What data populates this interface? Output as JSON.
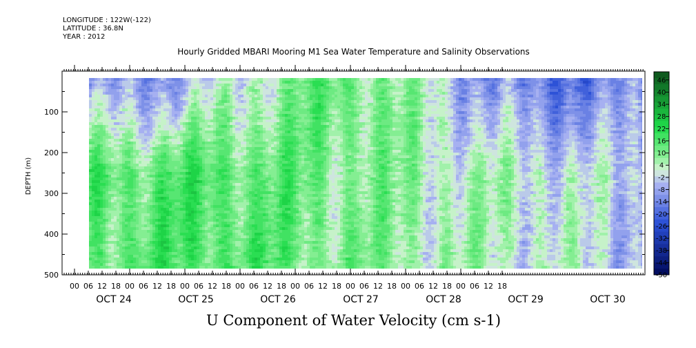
{
  "header": {
    "longitude": "LONGITUDE : 122W(-122)",
    "latitude": "LATITUDE : 36.8N",
    "year": "YEAR : 2012"
  },
  "chart_data": {
    "type": "heatmap",
    "title": "Hourly Gridded MBARI Mooring M1 Sea Water Temperature and Salinity Observations",
    "subtitle": "U Component of Water Velocity (cm s-1)",
    "ylabel": "DEPTH (m)",
    "xlabel": "",
    "ylim": [
      500,
      0
    ],
    "y_ticks": [
      100,
      200,
      300,
      400,
      500
    ],
    "y_tick_labels": [
      "100",
      "200",
      "300",
      "400",
      "500"
    ],
    "x_hour_ticks": [
      "00",
      "06",
      "12",
      "18",
      "00",
      "06",
      "12",
      "18",
      "00",
      "06",
      "12",
      "18",
      "00",
      "06",
      "12",
      "18",
      "00",
      "06",
      "12",
      "18",
      "00",
      "06",
      "12",
      "18",
      "00",
      "06",
      "12",
      "18",
      "00",
      "06",
      "12",
      "18"
    ],
    "day_labels": [
      "OCT 24",
      "OCT 25",
      "OCT 26",
      "OCT 27",
      "OCT 28",
      "OCT 29",
      "OCT 30"
    ],
    "colorbar": {
      "labels": [
        "46",
        "40",
        "34",
        "28",
        "22",
        "16",
        "10",
        "4",
        "-2",
        "-8",
        "-14",
        "-20",
        "-26",
        "-32",
        "-38",
        "-44",
        "-50"
      ],
      "min": -50,
      "max": 50,
      "step": 3,
      "colors": {
        "strong_negative": "#000a5a",
        "negative": "#2a4fd6",
        "weak_negative": "#a9b3f2",
        "near_zero": "#d8f2d8",
        "weak_positive": "#8ff09a",
        "positive": "#1fdc4a",
        "strong_positive": "#0d4d1a"
      }
    },
    "field_summary": [
      {
        "period": "OCT 24",
        "upper_layer": -12,
        "lower_layer": 14
      },
      {
        "period": "OCT 25",
        "upper_layer": -4,
        "lower_layer": 16
      },
      {
        "period": "OCT 26",
        "upper_layer": 10,
        "lower_layer": 12
      },
      {
        "period": "OCT 27",
        "upper_layer": 12,
        "lower_layer": 8
      },
      {
        "period": "OCT 28",
        "upper_layer": -6,
        "lower_layer": 4
      },
      {
        "period": "OCT 29",
        "upper_layer": -18,
        "lower_layer": 2
      },
      {
        "period": "OCT 30",
        "upper_layer": -14,
        "lower_layer": -4
      }
    ]
  }
}
